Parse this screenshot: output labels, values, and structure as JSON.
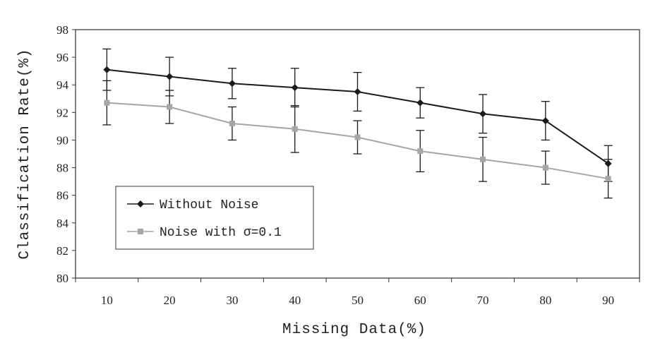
{
  "chart_data": {
    "type": "line",
    "x": [
      10,
      20,
      30,
      40,
      50,
      60,
      70,
      80,
      90
    ],
    "xticks": [
      "10",
      "20",
      "30",
      "40",
      "50",
      "60",
      "70",
      "80",
      "90"
    ],
    "yticks": [
      "80",
      "82",
      "84",
      "86",
      "88",
      "90",
      "92",
      "94",
      "96",
      "98"
    ],
    "xlabel": "Missing Data(%)",
    "ylabel": "Classification Rate(%)",
    "ylim": [
      80,
      98
    ],
    "grid": false,
    "legend_position": "bottom-left",
    "series": [
      {
        "name": "Without Noise",
        "color": "#1a1a1a",
        "marker": "diamond",
        "values": [
          95.1,
          94.6,
          94.1,
          93.8,
          93.5,
          92.7,
          91.9,
          91.4,
          88.3
        ],
        "error": [
          1.5,
          1.4,
          1.1,
          1.4,
          1.4,
          1.1,
          1.4,
          1.4,
          1.3
        ]
      },
      {
        "name": "Noise with σ=0.1",
        "color": "#a6a6a6",
        "marker": "square",
        "values": [
          92.7,
          92.4,
          91.2,
          90.8,
          90.2,
          89.2,
          88.6,
          88.0,
          87.2
        ],
        "error": [
          1.6,
          1.2,
          1.2,
          1.7,
          1.2,
          1.5,
          1.6,
          1.2,
          1.4
        ]
      }
    ]
  }
}
